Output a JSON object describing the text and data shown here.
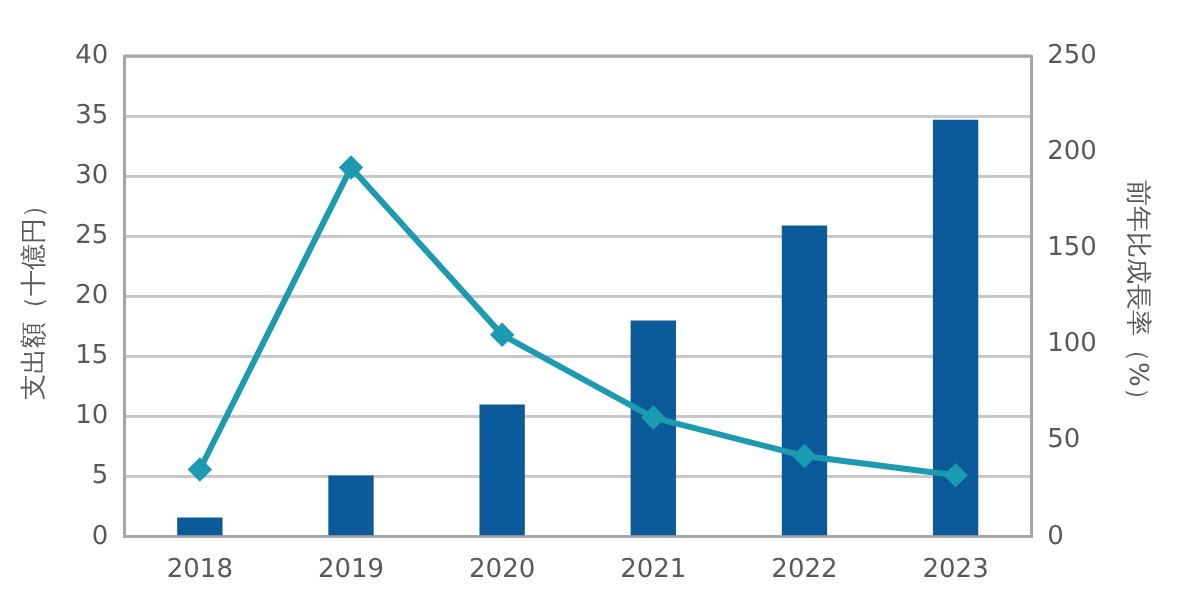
{
  "chart_data": {
    "type": "bar",
    "categories": [
      "2018",
      "2019",
      "2020",
      "2021",
      "2022",
      "2023"
    ],
    "ylabel": "支出額（十億円）",
    "y2label": "前年比成長率（%）",
    "series": [
      {
        "color": "#0b5a9a",
        "values": [
          1.6,
          5.1,
          11.0,
          18.0,
          25.9,
          34.7
        ]
      },
      {
        "type": "line",
        "axis": "y2",
        "color": "#1a9bb0",
        "values": [
          35,
          192,
          105,
          62,
          42,
          32
        ]
      }
    ],
    "ylim": [
      0,
      40
    ],
    "yticks": [
      0,
      5,
      10,
      15,
      20,
      25,
      30,
      35,
      40
    ],
    "y2lim": [
      0,
      250
    ],
    "y2ticks": [
      0,
      50,
      100,
      150,
      200,
      250
    ],
    "grid": "y",
    "legend": false,
    "marker": "diamond",
    "line_style": "solid"
  }
}
